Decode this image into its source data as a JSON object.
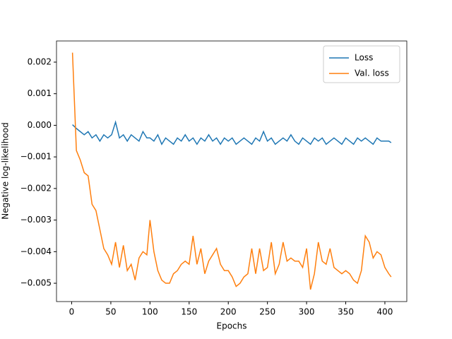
{
  "chart_data": {
    "type": "line",
    "xlabel": "Epochs",
    "ylabel": "Negative log-likelihood",
    "x": [
      1,
      6,
      11,
      16,
      21,
      26,
      31,
      36,
      41,
      46,
      51,
      56,
      61,
      66,
      71,
      76,
      81,
      86,
      91,
      96,
      100,
      105,
      110,
      115,
      120,
      125,
      130,
      135,
      140,
      145,
      150,
      155,
      160,
      165,
      170,
      175,
      180,
      185,
      190,
      195,
      200,
      205,
      210,
      215,
      220,
      225,
      230,
      235,
      240,
      245,
      250,
      255,
      260,
      265,
      270,
      275,
      280,
      285,
      290,
      295,
      300,
      305,
      310,
      315,
      320,
      325,
      330,
      335,
      340,
      345,
      350,
      355,
      360,
      365,
      370,
      375,
      380,
      385,
      390,
      395,
      400,
      405,
      408
    ],
    "series": [
      {
        "name": "Loss",
        "color": "#1f77b4",
        "values": [
          2e-05,
          -0.0001,
          -0.0002,
          -0.0003,
          -0.0002,
          -0.0004,
          -0.0003,
          -0.0005,
          -0.0003,
          -0.0004,
          -0.0003,
          0.0001,
          -0.0004,
          -0.0003,
          -0.0005,
          -0.0003,
          -0.0004,
          -0.0005,
          -0.0002,
          -0.0004,
          -0.0004,
          -0.0005,
          -0.0003,
          -0.0006,
          -0.0004,
          -0.0005,
          -0.0006,
          -0.0004,
          -0.0005,
          -0.0003,
          -0.0005,
          -0.0004,
          -0.0006,
          -0.0004,
          -0.0005,
          -0.0003,
          -0.0005,
          -0.0004,
          -0.0006,
          -0.0004,
          -0.0005,
          -0.0004,
          -0.0006,
          -0.0005,
          -0.0004,
          -0.0005,
          -0.0006,
          -0.0004,
          -0.0005,
          -0.0002,
          -0.0005,
          -0.0004,
          -0.0006,
          -0.0005,
          -0.0004,
          -0.0005,
          -0.0003,
          -0.0005,
          -0.0006,
          -0.0004,
          -0.0005,
          -0.0006,
          -0.0004,
          -0.0005,
          -0.0004,
          -0.0006,
          -0.0005,
          -0.0004,
          -0.0005,
          -0.0006,
          -0.0004,
          -0.0005,
          -0.0006,
          -0.0004,
          -0.0005,
          -0.0004,
          -0.0005,
          -0.0006,
          -0.0004,
          -0.0005,
          -0.0005,
          -0.0005,
          -0.00055
        ]
      },
      {
        "name": "Val. loss",
        "color": "#ff7f0e",
        "values": [
          0.0023,
          -0.0008,
          -0.0011,
          -0.0015,
          -0.0016,
          -0.0025,
          -0.0027,
          -0.0033,
          -0.0039,
          -0.0041,
          -0.0044,
          -0.0037,
          -0.0045,
          -0.0038,
          -0.0046,
          -0.0044,
          -0.0049,
          -0.0042,
          -0.004,
          -0.0041,
          -0.003,
          -0.004,
          -0.0046,
          -0.0049,
          -0.005,
          -0.005,
          -0.0047,
          -0.0046,
          -0.0044,
          -0.0043,
          -0.0044,
          -0.0035,
          -0.0044,
          -0.0039,
          -0.0047,
          -0.0043,
          -0.0041,
          -0.0039,
          -0.0044,
          -0.0046,
          -0.0046,
          -0.0048,
          -0.0051,
          -0.005,
          -0.0048,
          -0.0047,
          -0.0039,
          -0.0047,
          -0.0039,
          -0.0046,
          -0.0045,
          -0.0037,
          -0.0047,
          -0.0044,
          -0.0037,
          -0.0043,
          -0.0042,
          -0.0043,
          -0.0043,
          -0.0045,
          -0.0039,
          -0.0052,
          -0.0047,
          -0.0037,
          -0.0043,
          -0.0044,
          -0.0039,
          -0.0045,
          -0.0046,
          -0.0047,
          -0.0046,
          -0.0047,
          -0.0049,
          -0.005,
          -0.0046,
          -0.0035,
          -0.0037,
          -0.0042,
          -0.004,
          -0.0041,
          -0.0045,
          -0.0047,
          -0.0048
        ]
      }
    ],
    "xlim": [
      -19.4,
      428
    ],
    "xticks": [
      0,
      50,
      100,
      150,
      200,
      250,
      300,
      350,
      400
    ],
    "ylim": [
      -0.00558,
      0.00267
    ],
    "yticks": [
      {
        "value": -0.005,
        "label": "−0.005"
      },
      {
        "value": -0.004,
        "label": "−0.004"
      },
      {
        "value": -0.003,
        "label": "−0.003"
      },
      {
        "value": -0.002,
        "label": "−0.002"
      },
      {
        "value": -0.001,
        "label": "−0.001"
      },
      {
        "value": 0,
        "label": "0.000"
      },
      0.001,
      0.002
    ],
    "legend": "upper right"
  }
}
